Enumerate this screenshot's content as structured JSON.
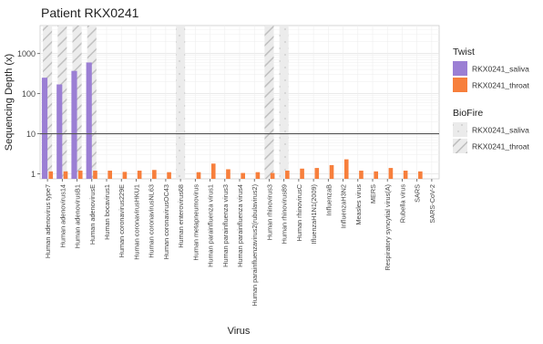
{
  "chart_data": {
    "type": "bar",
    "title": "Patient RKX0241",
    "xlabel": "Virus",
    "ylabel": "Sequencing Depth (x)",
    "y_scale": "log10",
    "ylim": [
      0.75,
      5000
    ],
    "y_ticks": [
      1,
      10,
      100,
      1000
    ],
    "y_tick_labels": [
      "1",
      "10",
      "100",
      "1000"
    ],
    "threshold_line": 10,
    "grid": true,
    "legend_position": "right",
    "categories": [
      "Human adenovirus type7",
      "Human adenovirus14",
      "Human adenovirusB1",
      "Human adenovirusE",
      "Human bocavirus1",
      "Human coronavirus229E",
      "Human coronavirusHKU1",
      "Human coronavirusNL63",
      "Human coronavirusOC43",
      "Human enterovirus68",
      "Human metapneumovirus",
      "Human parainfluenza virus1",
      "Human parainfluenza virus3",
      "Human parainfluenza virus4",
      "Human parainfluenzavirus2(rubulavirus2)",
      "Human rhinovirus3",
      "Human rhinovirus89",
      "Human rhinovirusC",
      "IfluenzaH1N1(2009)",
      "InfluenzaB",
      "InfluenzaH3N2",
      "Measles virus",
      "MERS",
      "Respiratory syncytial virus(A)",
      "Rubella virus",
      "SARS",
      "SARS-CoV-2"
    ],
    "series": [
      {
        "group": "Twist",
        "name": "RKX0241_saliva",
        "color": "#9b7fd4",
        "values": [
          250,
          170,
          370,
          600,
          null,
          null,
          null,
          null,
          null,
          null,
          null,
          null,
          null,
          null,
          null,
          null,
          null,
          null,
          null,
          null,
          null,
          null,
          null,
          null,
          null,
          null,
          null
        ]
      },
      {
        "group": "Twist",
        "name": "RKX0241_throat",
        "color": "#f77f3c",
        "values": [
          1.15,
          1.15,
          1.2,
          1.2,
          1.2,
          1.12,
          1.2,
          1.25,
          1.1,
          null,
          1.1,
          1.8,
          1.3,
          1.05,
          1.1,
          1.05,
          1.2,
          1.35,
          1.4,
          1.65,
          2.3,
          1.2,
          1.15,
          1.4,
          1.2,
          1.15,
          null
        ]
      },
      {
        "group": "BioFire",
        "name": "RKX0241_saliva",
        "pattern": "dotted",
        "categories_present": [
          "Human enterovirus68",
          "Human rhinovirus3",
          "Human rhinovirus89"
        ]
      },
      {
        "group": "BioFire",
        "name": "RKX0241_throat",
        "pattern": "striped",
        "categories_present": [
          "Human adenovirus type7",
          "Human adenovirus14",
          "Human adenovirusB1",
          "Human adenovirusE",
          "Human rhinovirus3"
        ]
      }
    ],
    "legend": [
      {
        "title": "Twist",
        "items": [
          {
            "label": "RKX0241_saliva",
            "color": "#9b7fd4",
            "style": "fill"
          },
          {
            "label": "RKX0241_throat",
            "color": "#f77f3c",
            "style": "fill"
          }
        ]
      },
      {
        "title": "BioFire",
        "items": [
          {
            "label": "RKX0241_saliva",
            "color": "#ebebeb",
            "style": "dotted"
          },
          {
            "label": "RKX0241_throat",
            "color": "#ebebeb",
            "style": "striped"
          }
        ]
      }
    ]
  }
}
